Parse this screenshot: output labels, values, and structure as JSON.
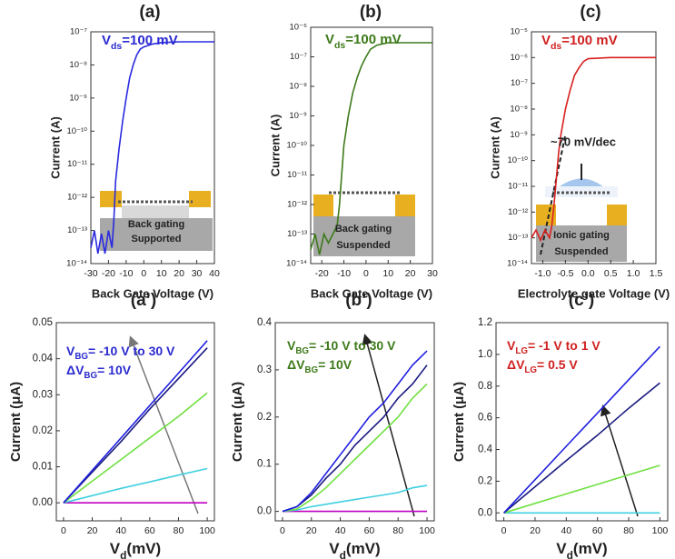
{
  "chart_data": [
    {
      "type": "line",
      "title": "(a)",
      "log_y": true,
      "xlabel": "Back Gate Voltage (V)",
      "ylabel": "Current (A)",
      "annotation": [
        "V",
        "ds",
        "=100 mV"
      ],
      "annotation_color": "#2a2ad0",
      "inset_text": [
        "Back gating",
        "Supported"
      ],
      "xlim": [
        -30,
        40
      ],
      "xticks": [
        -30,
        -20,
        -10,
        0,
        10,
        20,
        30,
        40
      ],
      "ylim": [
        1e-14,
        1e-07
      ],
      "yticks": [
        {
          "value": 1e-14,
          "label": "10⁻¹⁴"
        },
        {
          "value": 1e-13,
          "label": "10⁻¹³"
        },
        {
          "value": 1e-12,
          "label": "10⁻¹²"
        },
        {
          "value": 1e-11,
          "label": "10⁻¹¹"
        },
        {
          "value": 1e-10,
          "label": "10⁻¹⁰"
        },
        {
          "value": 1e-09,
          "label": "10⁻⁹"
        },
        {
          "value": 1e-08,
          "label": "10⁻⁸"
        },
        {
          "value": 1e-07,
          "label": "10⁻⁷"
        }
      ],
      "x": [
        -30,
        -28,
        -26,
        -24,
        -22,
        -20,
        -18,
        -17,
        -16,
        -14,
        -12,
        -10,
        -8,
        -6,
        -4,
        -2,
        0,
        5,
        10,
        20,
        30,
        40
      ],
      "series": [
        {
          "color": "#2a2ae0",
          "values": [
            3e-14,
            1e-13,
            2e-14,
            8e-14,
            2e-14,
            1e-13,
            3e-14,
            2e-13,
            3e-12,
            3e-11,
            2e-10,
            1e-09,
            4e-09,
            1e-08,
            2e-08,
            3e-08,
            3.5e-08,
            4.3e-08,
            4.7e-08,
            5e-08,
            5e-08,
            5e-08
          ]
        }
      ]
    },
    {
      "type": "line",
      "title": "(b)",
      "log_y": true,
      "xlabel": "Back Gate Voltage (V)",
      "ylabel": "Current (A)",
      "annotation": [
        "V",
        "ds",
        "=100 mV"
      ],
      "annotation_color": "#3d7a1a",
      "inset_text": [
        "Back gating",
        "Suspended"
      ],
      "xlim": [
        -25,
        30
      ],
      "xticks": [
        -20,
        -10,
        0,
        10,
        20,
        30
      ],
      "ylim": [
        1e-14,
        1e-06
      ],
      "yticks": [
        {
          "value": 1e-14,
          "label": "10⁻¹⁴"
        },
        {
          "value": 1e-13,
          "label": "10⁻¹³"
        },
        {
          "value": 1e-12,
          "label": "10⁻¹²"
        },
        {
          "value": 1e-11,
          "label": "10⁻¹¹"
        },
        {
          "value": 1e-10,
          "label": "10⁻¹⁰"
        },
        {
          "value": 1e-09,
          "label": "10⁻⁹"
        },
        {
          "value": 1e-08,
          "label": "10⁻⁸"
        },
        {
          "value": 1e-07,
          "label": "10⁻⁷"
        },
        {
          "value": 1e-06,
          "label": "10⁻⁶"
        }
      ],
      "x": [
        -25,
        -23,
        -21,
        -19,
        -17,
        -15,
        -13,
        -12,
        -10,
        -8,
        -6,
        -4,
        -2,
        0,
        2,
        5,
        10,
        20,
        30
      ],
      "series": [
        {
          "color": "#3d7a1a",
          "values": [
            3e-14,
            1e-13,
            2e-14,
            1e-13,
            5e-14,
            1e-13,
            2e-13,
            1e-12,
            1e-10,
            1e-09,
            6e-09,
            2e-08,
            5e-08,
            1e-07,
            1.8e-07,
            2.5e-07,
            3e-07,
            3e-07,
            3e-07
          ]
        }
      ]
    },
    {
      "type": "line",
      "title": "(c)",
      "log_y": true,
      "xlabel": "Electrolyte gate Voltage (V)",
      "ylabel": "Current (A)",
      "annotation": [
        "V",
        "ds",
        "=100 mV"
      ],
      "annotation_color": "#d02020",
      "inset_text": [
        "Ionic gating",
        "Suspended"
      ],
      "slope_label": "~70 mV/dec",
      "xlim": [
        -1.25,
        1.5
      ],
      "xticks": [
        {
          "value": -1,
          "label": "-1.0"
        },
        -0.5,
        {
          "value": 0,
          "label": "0.0"
        },
        0.5,
        {
          "value": 1,
          "label": "1.0"
        },
        1.5
      ],
      "ylim": [
        1e-14,
        1e-05
      ],
      "yticks": [
        {
          "value": 1e-14,
          "label": "10⁻¹⁴"
        },
        {
          "value": 1e-13,
          "label": "10⁻¹³"
        },
        {
          "value": 1e-12,
          "label": "10⁻¹²"
        },
        {
          "value": 1e-11,
          "label": "10⁻¹¹"
        },
        {
          "value": 1e-10,
          "label": "10⁻¹⁰"
        },
        {
          "value": 1e-09,
          "label": "10⁻⁹"
        },
        {
          "value": 1e-08,
          "label": "10⁻⁸"
        },
        {
          "value": 1e-07,
          "label": "10⁻⁷"
        },
        {
          "value": 1e-06,
          "label": "10⁻⁶"
        },
        {
          "value": 1e-05,
          "label": "10⁻⁵"
        }
      ],
      "x": [
        -1.25,
        -1.15,
        -1.05,
        -0.95,
        -0.85,
        -0.8,
        -0.75,
        -0.7,
        -0.65,
        -0.6,
        -0.5,
        -0.4,
        -0.3,
        -0.2,
        -0.1,
        0,
        0.5,
        1,
        1.5
      ],
      "series": [
        {
          "color": "#d82020",
          "values": [
            1e-13,
            2e-13,
            8e-14,
            2e-13,
            1e-13,
            3e-13,
            2e-12,
            2e-11,
            2e-10,
            1e-09,
            1e-08,
            5e-08,
            2e-07,
            4e-07,
            7e-07,
            9e-07,
            1e-06,
            1e-06,
            1e-06
          ]
        }
      ]
    },
    {
      "type": "line",
      "title": "(a’)",
      "log_y": false,
      "xlabel": [
        "V",
        "d",
        "(mV)"
      ],
      "ylabel": "Current (μA)",
      "annotation": [
        [
          "V",
          "BG",
          "= -10 V to 30 V"
        ],
        [
          "ΔV",
          "BG",
          "= 10V"
        ]
      ],
      "annotation_color": "#2a2ad0",
      "xlim": [
        -5,
        105
      ],
      "xticks": [
        0,
        20,
        40,
        60,
        80,
        100
      ],
      "ylim": [
        -0.005,
        0.05
      ],
      "yticks": [
        {
          "value": 0,
          "label": "0.00"
        },
        0.01,
        0.02,
        0.03,
        0.04,
        0.05
      ],
      "x": [
        0,
        20,
        40,
        60,
        80,
        100
      ],
      "series": [
        {
          "color": "#c000c0",
          "values": [
            0,
            0,
            0,
            0,
            0,
            0
          ]
        },
        {
          "color": "#40d0e0",
          "values": [
            0,
            0.002,
            0.004,
            0.0058,
            0.0077,
            0.0095
          ]
        },
        {
          "color": "#70e040",
          "values": [
            0,
            0.006,
            0.012,
            0.018,
            0.024,
            0.0305
          ]
        },
        {
          "color": "#1a1a80",
          "values": [
            0,
            0.0085,
            0.017,
            0.026,
            0.0345,
            0.043
          ]
        },
        {
          "color": "#2020e0",
          "values": [
            0,
            0.009,
            0.018,
            0.027,
            0.036,
            0.045
          ]
        }
      ]
    },
    {
      "type": "line",
      "title": "(b’)",
      "log_y": false,
      "xlabel": [
        "V",
        "d",
        "(mV)"
      ],
      "ylabel": "Current (μA)",
      "annotation": [
        [
          "V",
          "BG",
          "= -10 V to 30 V"
        ],
        [
          "ΔV",
          "BG",
          "= 10V"
        ]
      ],
      "annotation_color": "#3d7a1a",
      "xlim": [
        -5,
        105
      ],
      "xticks": [
        0,
        20,
        40,
        60,
        80,
        100
      ],
      "ylim": [
        -0.02,
        0.4
      ],
      "yticks": [
        {
          "value": 0,
          "label": "0.0"
        },
        0.1,
        0.2,
        0.3,
        0.4
      ],
      "x": [
        0,
        10,
        20,
        30,
        40,
        50,
        60,
        70,
        80,
        90,
        100
      ],
      "series": [
        {
          "color": "#c000c0",
          "values": [
            0,
            0,
            0,
            0,
            0,
            0,
            0,
            0,
            0,
            0,
            0
          ]
        },
        {
          "color": "#40d0e0",
          "values": [
            0,
            0.003,
            0.01,
            0.015,
            0.02,
            0.025,
            0.03,
            0.035,
            0.04,
            0.05,
            0.055
          ]
        },
        {
          "color": "#70e040",
          "values": [
            0,
            0.005,
            0.025,
            0.05,
            0.08,
            0.11,
            0.14,
            0.17,
            0.2,
            0.24,
            0.27
          ]
        },
        {
          "color": "#1a1a80",
          "values": [
            0,
            0.01,
            0.035,
            0.07,
            0.1,
            0.14,
            0.17,
            0.2,
            0.24,
            0.27,
            0.31
          ]
        },
        {
          "color": "#2020e0",
          "values": [
            0,
            0.01,
            0.04,
            0.08,
            0.12,
            0.16,
            0.2,
            0.23,
            0.27,
            0.31,
            0.34
          ]
        }
      ]
    },
    {
      "type": "line",
      "title": "(c’)",
      "log_y": false,
      "xlabel": [
        "V",
        "d",
        "(mV)"
      ],
      "ylabel": "Current (μA)",
      "annotation": [
        [
          "V",
          "LG",
          "= -1 V to 1 V"
        ],
        [
          "ΔV",
          "LG",
          "= 0.5 V"
        ]
      ],
      "annotation_color": "#d02020",
      "xlim": [
        -5,
        105
      ],
      "xticks": [
        0,
        20,
        40,
        60,
        80,
        100
      ],
      "ylim": [
        -0.05,
        1.2
      ],
      "yticks": [
        {
          "value": 0,
          "label": "0.0"
        },
        0.2,
        0.4,
        0.6,
        0.8,
        {
          "value": 1,
          "label": "1.0"
        },
        1.2
      ],
      "x": [
        0,
        20,
        40,
        60,
        80,
        100
      ],
      "series": [
        {
          "color": "#40d0e0",
          "values": [
            0,
            0,
            0,
            0,
            0,
            0
          ]
        },
        {
          "color": "#70e040",
          "values": [
            0,
            0.06,
            0.12,
            0.18,
            0.24,
            0.3
          ]
        },
        {
          "color": "#1a1a80",
          "values": [
            0,
            0.165,
            0.33,
            0.49,
            0.66,
            0.82
          ]
        },
        {
          "color": "#2020e0",
          "values": [
            0,
            0.21,
            0.42,
            0.63,
            0.84,
            1.05
          ]
        }
      ]
    }
  ]
}
